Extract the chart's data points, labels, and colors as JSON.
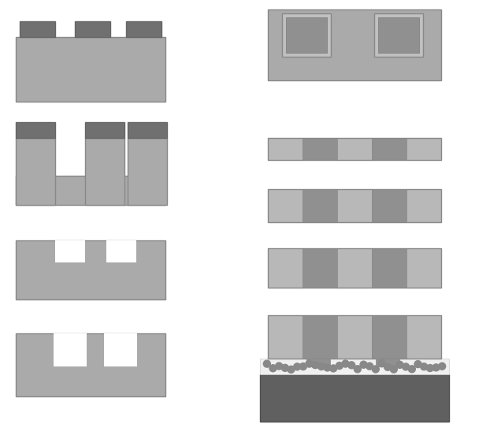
{
  "bg": "#ffffff",
  "slab_color": "#aaaaaa",
  "slab_edge": "#888888",
  "dark_bump": "#707070",
  "dark_bump_edge": "#666666",
  "pad_light": "#c0c0c0",
  "pad_dark": "#888888",
  "strip_light": "#b8b8b8",
  "strip_dark": "#909090",
  "divider": "#808080",
  "substrate": "#606060",
  "dot_color": "#888888",
  "fig_w": 6.22,
  "fig_h": 5.38,
  "dpi": 100
}
